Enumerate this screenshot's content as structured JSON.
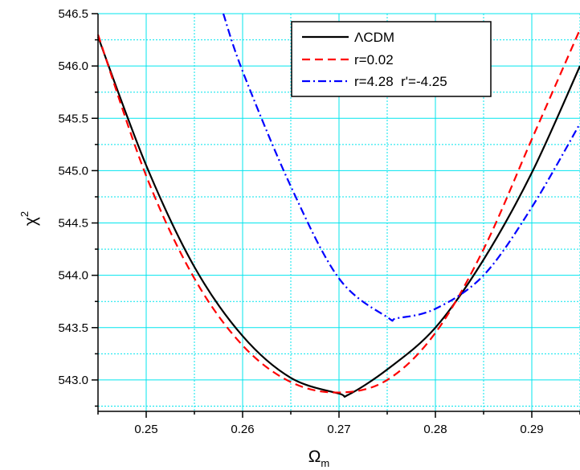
{
  "chart_data": {
    "type": "line",
    "title": "",
    "xlabel": "Ω",
    "xlabel_sub": "m",
    "ylabel": "χ",
    "ylabel_sup": "2",
    "xlim": [
      0.245,
      0.295
    ],
    "ylim": [
      542.7,
      546.5
    ],
    "xticks": [
      0.25,
      0.26,
      0.27,
      0.28,
      0.29
    ],
    "xtick_labels": [
      "0.25",
      "0.26",
      "0.27",
      "0.28",
      "0.29"
    ],
    "yticks": [
      543.0,
      543.5,
      544.0,
      544.5,
      545.0,
      545.5,
      546.0,
      546.5
    ],
    "ytick_labels": [
      "543.0",
      "543.5",
      "544.0",
      "544.5",
      "545.0",
      "545.5",
      "546.0",
      "546.5"
    ],
    "grid": true,
    "grid_color": "#00e5ee",
    "legend_position": "top-right",
    "series": [
      {
        "name": "ΛCDM",
        "color": "#000000",
        "dash": "solid",
        "x": [
          0.245,
          0.25,
          0.255,
          0.26,
          0.265,
          0.27,
          0.271,
          0.275,
          0.28,
          0.285,
          0.29,
          0.295
        ],
        "y": [
          546.28,
          545.05,
          544.08,
          543.42,
          543.02,
          542.87,
          542.86,
          543.1,
          543.5,
          544.15,
          544.98,
          546.0
        ]
      },
      {
        "name": "r=0.02",
        "color": "#ff0000",
        "dash": "dashed",
        "x": [
          0.245,
          0.25,
          0.255,
          0.26,
          0.265,
          0.27,
          0.275,
          0.28,
          0.285,
          0.29,
          0.295
        ],
        "y": [
          546.3,
          544.95,
          543.97,
          543.33,
          542.98,
          542.88,
          543.0,
          543.45,
          544.25,
          545.3,
          546.35
        ]
      },
      {
        "name": "r=4.28  r'=-4.25",
        "color": "#0000ff",
        "dash": "dashdot",
        "x": [
          0.258,
          0.26,
          0.265,
          0.27,
          0.275,
          0.276,
          0.28,
          0.285,
          0.29,
          0.295
        ],
        "y": [
          546.5,
          545.95,
          544.85,
          543.97,
          543.6,
          543.59,
          543.68,
          544.0,
          544.65,
          545.45
        ]
      }
    ]
  }
}
